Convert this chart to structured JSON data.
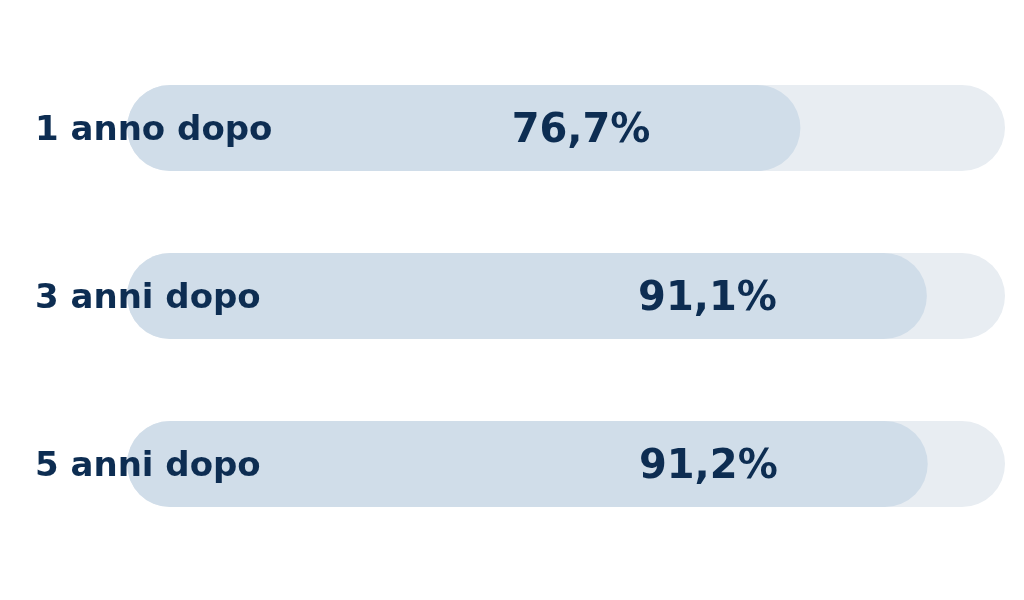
{
  "chart_data": {
    "type": "bar",
    "orientation": "horizontal",
    "categories": [
      "1 anno dopo",
      "3 anni dopo",
      "5 anni dopo"
    ],
    "values": [
      76.7,
      91.1,
      91.2
    ],
    "color": "#d0dde9",
    "value_labels": [
      "76,7%",
      "91,1%",
      "91,2%"
    ],
    "xlim": [
      0,
      100
    ],
    "tick_labels": "y"
  }
}
